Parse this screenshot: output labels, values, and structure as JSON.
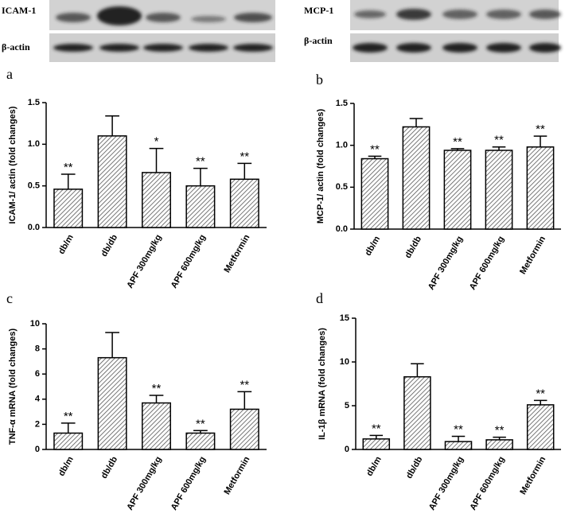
{
  "blots": [
    {
      "protein": "ICAM-1",
      "control": "β-actin"
    },
    {
      "protein": "MCP-1",
      "control": "β-actin"
    }
  ],
  "chart_data": [
    {
      "type": "bar",
      "panel": "a",
      "ylabel": "ICAM-1/ actin (fold changes)",
      "categories": [
        "db/m",
        "db/db",
        "APF 300mg/kg",
        "APF 600mg/kg",
        "Metformin"
      ],
      "values": [
        0.46,
        1.1,
        0.66,
        0.5,
        0.58
      ],
      "errors": [
        0.18,
        0.24,
        0.29,
        0.21,
        0.19
      ],
      "significance": [
        "**",
        null,
        "*",
        "**",
        "**"
      ],
      "color": "#555555",
      "ylim": [
        0,
        1.5
      ],
      "yticks": [
        {
          "value": 0,
          "label": "0.0"
        },
        {
          "value": 0.5,
          "label": "0.5"
        },
        {
          "value": 1,
          "label": "1.0"
        },
        {
          "value": 1.5,
          "label": "1.5"
        }
      ]
    },
    {
      "type": "bar",
      "panel": "b",
      "ylabel": "MCP-1/ actin (fold changes)",
      "categories": [
        "db/m",
        "db/db",
        "APF 300mg/kg",
        "APF 600mg/kg",
        "Metformin"
      ],
      "values": [
        0.84,
        1.22,
        0.94,
        0.94,
        0.98
      ],
      "errors": [
        0.03,
        0.1,
        0.02,
        0.04,
        0.13
      ],
      "significance": [
        "**",
        null,
        "**",
        "**",
        "**"
      ],
      "color": "#555555",
      "ylim": [
        0,
        1.5
      ],
      "yticks": [
        {
          "value": 0,
          "label": "0.0"
        },
        {
          "value": 0.5,
          "label": "0.5"
        },
        {
          "value": 1,
          "label": "1.0"
        },
        {
          "value": 1.5,
          "label": "1.5"
        }
      ]
    },
    {
      "type": "bar",
      "panel": "c",
      "ylabel": "TNF-α mRNA (fold changes)",
      "categories": [
        "db/m",
        "db/db",
        "APF 300mg/kg",
        "APF 600mg/kg",
        "Metformin"
      ],
      "values": [
        1.3,
        7.3,
        3.7,
        1.3,
        3.2
      ],
      "errors": [
        0.8,
        2.0,
        0.6,
        0.2,
        1.4
      ],
      "significance": [
        "**",
        null,
        "**",
        "**",
        "**"
      ],
      "color": "#555555",
      "ylim": [
        0,
        10
      ],
      "yticks": [
        0,
        2,
        4,
        6,
        8,
        10
      ]
    },
    {
      "type": "bar",
      "panel": "d",
      "ylabel": "IL-1β mRNA (fold changes)",
      "categories": [
        "db/m",
        "db/db",
        "APF 300mg/kg",
        "APF 600mg/kg",
        "Metformin"
      ],
      "values": [
        1.2,
        8.3,
        0.9,
        1.1,
        5.1
      ],
      "errors": [
        0.4,
        1.5,
        0.6,
        0.3,
        0.5
      ],
      "significance": [
        "**",
        null,
        "**",
        "**",
        "**"
      ],
      "color": "#555555",
      "ylim": [
        0,
        15
      ],
      "yticks": [
        0,
        5,
        10,
        15
      ]
    }
  ]
}
